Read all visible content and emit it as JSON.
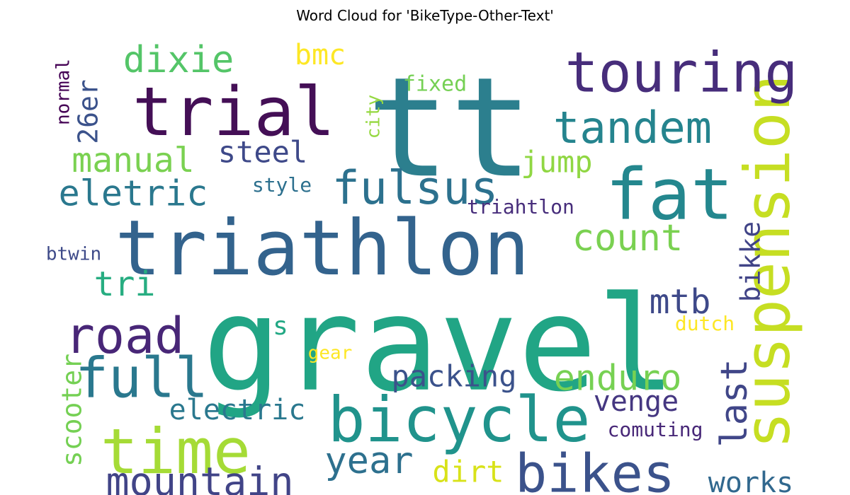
{
  "chart_data": {
    "type": "wordcloud",
    "title": "Word Cloud for 'BikeType-Other-Text'",
    "words": [
      {
        "text": "gravel",
        "weight": 100,
        "color": "#21a585"
      },
      {
        "text": "tt",
        "weight": 96,
        "color": "#2c7f8e"
      },
      {
        "text": "triathlon",
        "weight": 60,
        "color": "#33638d"
      },
      {
        "text": "trial",
        "weight": 52,
        "color": "#440f56"
      },
      {
        "text": "fat",
        "weight": 50,
        "color": "#24878e"
      },
      {
        "text": "bicycle",
        "weight": 48,
        "color": "#20938c"
      },
      {
        "text": "suspension",
        "weight": 46,
        "color": "#c6de22"
      },
      {
        "text": "time",
        "weight": 44,
        "color": "#a5db36"
      },
      {
        "text": "full",
        "weight": 42,
        "color": "#2a788e"
      },
      {
        "text": "touring",
        "weight": 40,
        "color": "#472d7b"
      },
      {
        "text": "bikes",
        "weight": 40,
        "color": "#3b528b"
      },
      {
        "text": "road",
        "weight": 38,
        "color": "#482677"
      },
      {
        "text": "fulsus",
        "weight": 36,
        "color": "#2c718e"
      },
      {
        "text": "tandem",
        "weight": 34,
        "color": "#25848e"
      },
      {
        "text": "mountain",
        "weight": 30,
        "color": "#414487"
      },
      {
        "text": "year",
        "weight": 30,
        "color": "#2d708e"
      },
      {
        "text": "enduro",
        "weight": 28,
        "color": "#77d153"
      },
      {
        "text": "count",
        "weight": 28,
        "color": "#7ad151"
      },
      {
        "text": "last",
        "weight": 28,
        "color": "#404688"
      },
      {
        "text": "dixie",
        "weight": 28,
        "color": "#54c568"
      },
      {
        "text": "eletric",
        "weight": 28,
        "color": "#2a788e"
      },
      {
        "text": "manual",
        "weight": 26,
        "color": "#7ad151"
      },
      {
        "text": "mtb",
        "weight": 26,
        "color": "#3e4989"
      },
      {
        "text": "tri",
        "weight": 26,
        "color": "#27ad81"
      },
      {
        "text": "works",
        "weight": 24,
        "color": "#31688e"
      },
      {
        "text": "bikke",
        "weight": 22,
        "color": "#414487"
      },
      {
        "text": "packing",
        "weight": 22,
        "color": "#3b528b"
      },
      {
        "text": "venge",
        "weight": 22,
        "color": "#453781"
      },
      {
        "text": "electric",
        "weight": 22,
        "color": "#2a788e"
      },
      {
        "text": "steel",
        "weight": 22,
        "color": "#3e4989"
      },
      {
        "text": "jump",
        "weight": 22,
        "color": "#90d743"
      },
      {
        "text": "dirt",
        "weight": 22,
        "color": "#d8e219"
      },
      {
        "text": "scooter",
        "weight": 22,
        "color": "#75d054"
      },
      {
        "text": "bmc",
        "weight": 20,
        "color": "#fde725"
      },
      {
        "text": "26er",
        "weight": 20,
        "color": "#3b528b"
      },
      {
        "text": "s",
        "weight": 18,
        "color": "#22a884"
      },
      {
        "text": "triahtlon",
        "weight": 16,
        "color": "#472d7b"
      },
      {
        "text": "comuting",
        "weight": 14,
        "color": "#482878"
      },
      {
        "text": "fixed",
        "weight": 14,
        "color": "#75d054"
      },
      {
        "text": "dutch",
        "weight": 14,
        "color": "#fde725"
      },
      {
        "text": "style",
        "weight": 14,
        "color": "#2d708e"
      },
      {
        "text": "gear",
        "weight": 12,
        "color": "#fde725"
      },
      {
        "text": "btwin",
        "weight": 12,
        "color": "#3e4a89"
      },
      {
        "text": "city",
        "weight": 12,
        "color": "#95d840"
      },
      {
        "text": "normal",
        "weight": 12,
        "color": "#440154"
      }
    ]
  }
}
